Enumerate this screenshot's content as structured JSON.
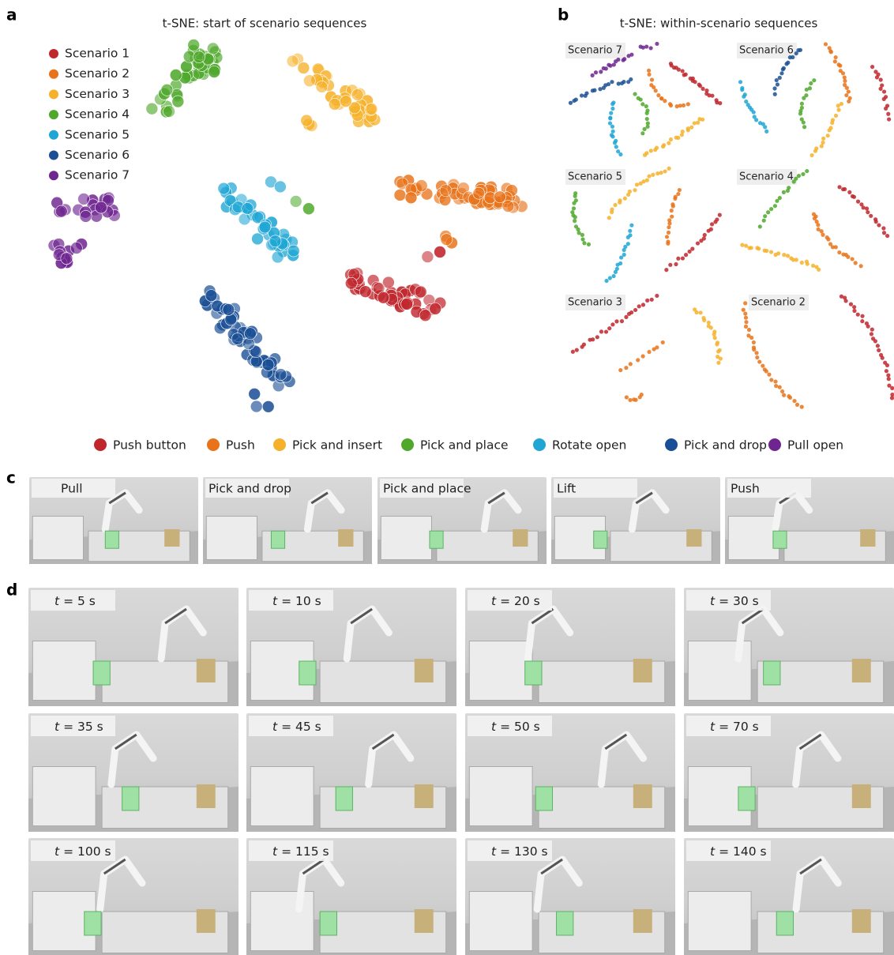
{
  "panel_a": {
    "label": "a",
    "title": "t-SNE: start of scenario sequences",
    "legend": [
      {
        "name": "Scenario 1",
        "color": "#c0272d"
      },
      {
        "name": "Scenario 2",
        "color": "#e8731a"
      },
      {
        "name": "Scenario 3",
        "color": "#f6b12b"
      },
      {
        "name": "Scenario 4",
        "color": "#4fa82c"
      },
      {
        "name": "Scenario 5",
        "color": "#1fa6d4"
      },
      {
        "name": "Scenario 6",
        "color": "#1b4f95"
      },
      {
        "name": "Scenario 7",
        "color": "#6e2590"
      }
    ]
  },
  "panel_b": {
    "label": "b",
    "title": "t-SNE: within-scenario sequences",
    "subplots": [
      "Scenario 7",
      "Scenario 6",
      "Scenario 5",
      "Scenario 4",
      "Scenario 3",
      "Scenario 2"
    ]
  },
  "skill_legend": [
    {
      "name": "Push button",
      "color": "#c0272d"
    },
    {
      "name": "Push",
      "color": "#e8731a"
    },
    {
      "name": "Pick and insert",
      "color": "#f6b12b"
    },
    {
      "name": "Pick and place",
      "color": "#4fa82c"
    },
    {
      "name": "Rotate open",
      "color": "#1fa6d4"
    },
    {
      "name": "Pick and drop",
      "color": "#1b4f95"
    },
    {
      "name": "Pull open",
      "color": "#6e2590"
    }
  ],
  "panel_c": {
    "label": "c",
    "frames": [
      "Pull",
      "Pick and drop",
      "Pick and place",
      "Lift",
      "Push"
    ]
  },
  "panel_d": {
    "label": "d",
    "frames": [
      {
        "var": "t",
        "rest": "= 5 s"
      },
      {
        "var": "t",
        "rest": "= 10 s"
      },
      {
        "var": "t",
        "rest": "= 20 s"
      },
      {
        "var": "t",
        "rest": "= 30 s"
      },
      {
        "var": "t",
        "rest": "= 35 s"
      },
      {
        "var": "t",
        "rest": "= 45 s"
      },
      {
        "var": "t",
        "rest": "= 50 s"
      },
      {
        "var": "t",
        "rest": "= 70 s"
      },
      {
        "var": "t",
        "rest": "= 100 s"
      },
      {
        "var": "t",
        "rest": "= 115 s"
      },
      {
        "var": "t",
        "rest": "= 130 s"
      },
      {
        "var": "t",
        "rest": "= 140 s"
      }
    ]
  }
}
